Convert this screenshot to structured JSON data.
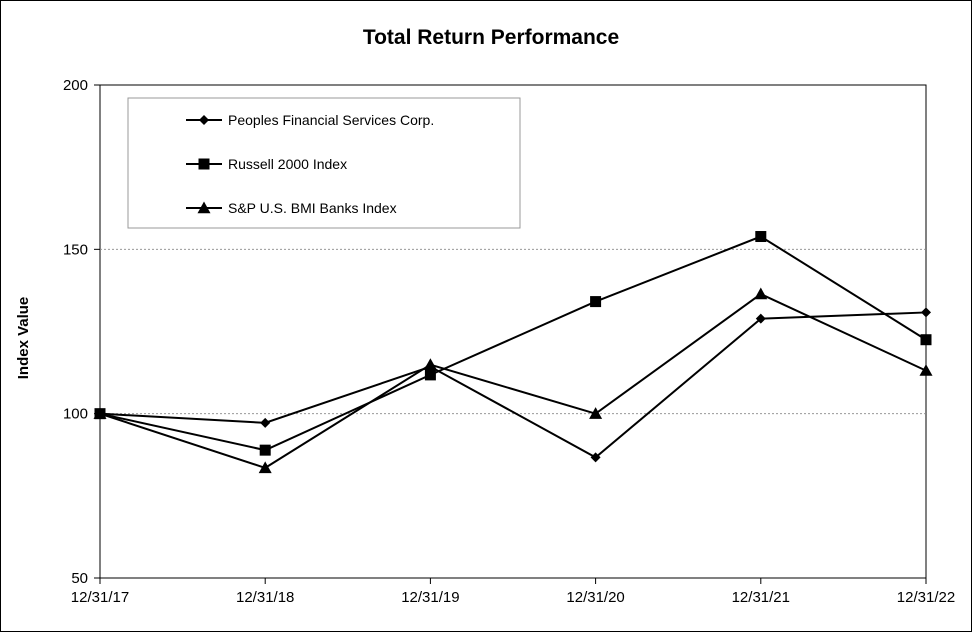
{
  "chart_data": {
    "type": "line",
    "title": "Total Return Performance",
    "xlabel": "",
    "ylabel": "Index Value",
    "categories": [
      "12/31/17",
      "12/31/18",
      "12/31/19",
      "12/31/20",
      "12/31/21",
      "12/31/22"
    ],
    "ylim": [
      50,
      200
    ],
    "yticks": [
      "50",
      "100",
      "150",
      "200"
    ],
    "grid": "horizontal dashed at 100 and 150",
    "legend_position": "top-left",
    "series": [
      {
        "name": "Peoples Financial Services Corp.",
        "marker": "diamond",
        "values": [
          100,
          97.2,
          114.3,
          86.7,
          128.9,
          130.8
        ]
      },
      {
        "name": "Russell 2000 Index",
        "marker": "square",
        "values": [
          100,
          88.9,
          111.8,
          134.1,
          153.9,
          122.5
        ]
      },
      {
        "name": "S&P U.S. BMI Banks Index",
        "marker": "triangle",
        "values": [
          100,
          83.5,
          114.9,
          100.0,
          136.4,
          113.1
        ]
      }
    ]
  }
}
